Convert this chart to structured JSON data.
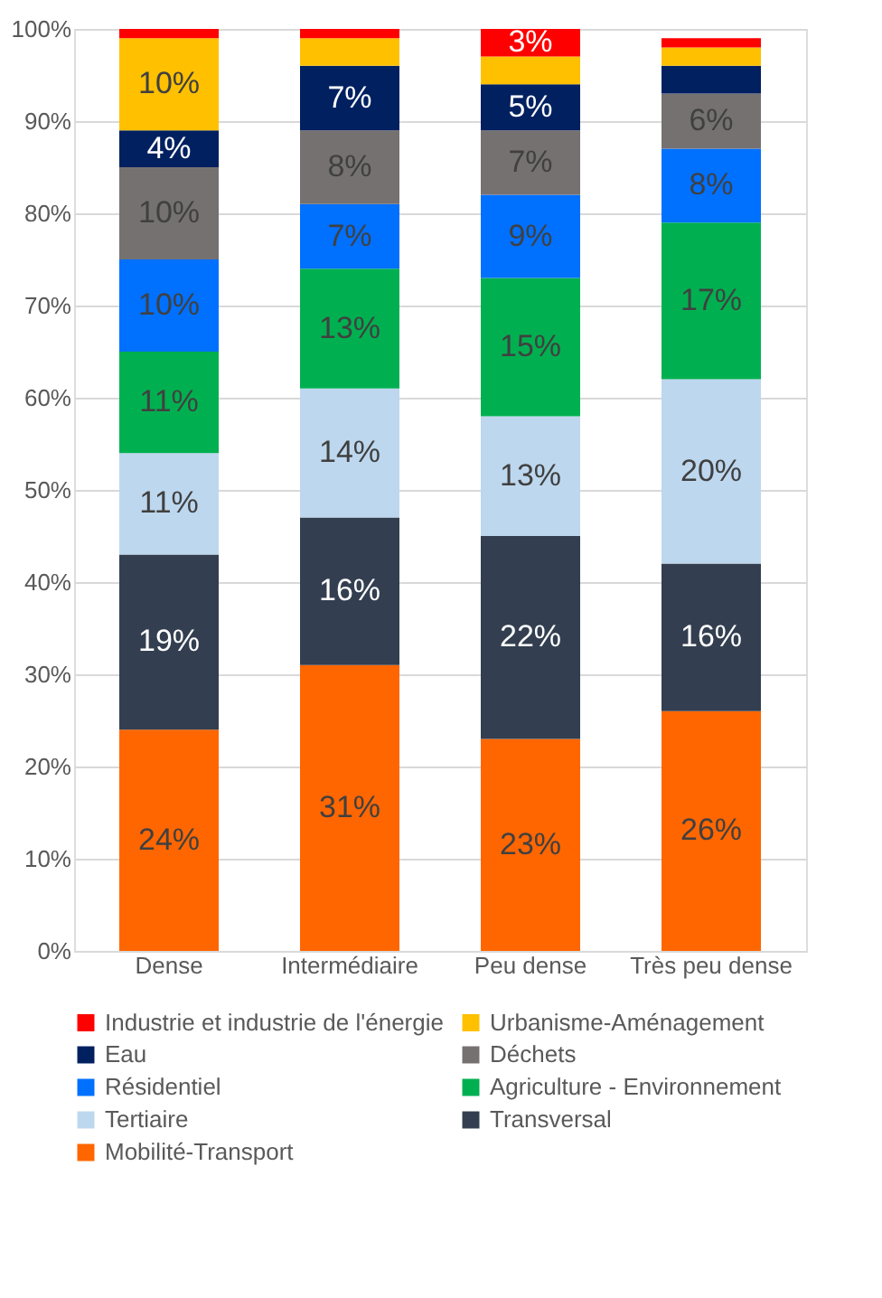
{
  "chart_data": {
    "type": "bar",
    "stacked": true,
    "categories": [
      "Dense",
      "Intermédiaire",
      "Peu dense",
      "Très peu dense"
    ],
    "series": [
      {
        "name": "Mobilité-Transport",
        "color": "#ff6600",
        "values": [
          24,
          31,
          23,
          26
        ],
        "value_labels": [
          "24%",
          "31%",
          "23%",
          "26%"
        ]
      },
      {
        "name": "Transversal",
        "color": "#333f50",
        "values": [
          19,
          16,
          22,
          16
        ],
        "value_labels": [
          "19%",
          "16%",
          "22%",
          "16%"
        ]
      },
      {
        "name": "Tertiaire",
        "color": "#bdd7ee",
        "values": [
          11,
          14,
          13,
          20
        ],
        "value_labels": [
          "11%",
          "14%",
          "13%",
          "20%"
        ]
      },
      {
        "name": "Agriculture - Environnement",
        "color": "#00b050",
        "values": [
          11,
          13,
          15,
          17
        ],
        "value_labels": [
          "11%",
          "13%",
          "15%",
          "17%"
        ]
      },
      {
        "name": "Résidentiel",
        "color": "#0070ff",
        "values": [
          10,
          7,
          9,
          8
        ],
        "value_labels": [
          "10%",
          "7%",
          "9%",
          "8%"
        ]
      },
      {
        "name": "Déchets",
        "color": "#767171",
        "values": [
          10,
          8,
          7,
          6
        ],
        "value_labels": [
          "10%",
          "8%",
          "7%",
          "6%"
        ]
      },
      {
        "name": "Eau",
        "color": "#002060",
        "values": [
          4,
          7,
          5,
          3
        ],
        "value_labels": [
          "4%",
          "7%",
          "5%",
          null
        ]
      },
      {
        "name": "Urbanisme-Aménagement",
        "color": "#ffc000",
        "values": [
          10,
          3,
          3,
          2
        ],
        "value_labels": [
          "10%",
          null,
          null,
          null
        ]
      },
      {
        "name": "Industrie et industrie de l'énergie",
        "color": "#ff0000",
        "values": [
          1,
          1,
          3,
          1
        ],
        "value_labels": [
          null,
          null,
          "3%",
          null
        ]
      }
    ],
    "ylim": [
      0,
      100
    ],
    "yticks": [
      {
        "value": 0,
        "label": "0%"
      },
      {
        "value": 10,
        "label": "10%"
      },
      {
        "value": 20,
        "label": "20%"
      },
      {
        "value": 30,
        "label": "30%"
      },
      {
        "value": 40,
        "label": "40%"
      },
      {
        "value": 50,
        "label": "50%"
      },
      {
        "value": 60,
        "label": "60%"
      },
      {
        "value": 70,
        "label": "70%"
      },
      {
        "value": 80,
        "label": "80%"
      },
      {
        "value": 90,
        "label": "90%"
      },
      {
        "value": 100,
        "label": "100%"
      }
    ],
    "grid": "y",
    "legend": "bottom"
  }
}
